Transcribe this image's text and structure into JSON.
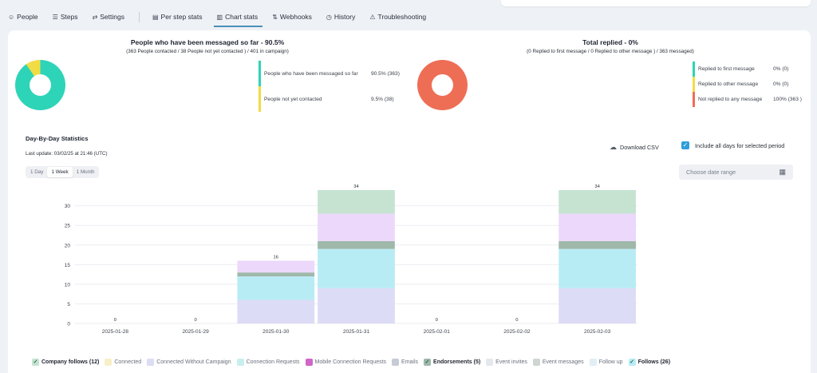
{
  "tabs": [
    {
      "icon": "users-icon",
      "glyph": "☺",
      "label": "People"
    },
    {
      "icon": "steps-icon",
      "glyph": "☰",
      "label": "Steps"
    },
    {
      "icon": "settings-icon",
      "glyph": "⇄",
      "label": "Settings"
    },
    {
      "icon": "per-step-stats-icon",
      "glyph": "▤",
      "label": "Per step stats"
    },
    {
      "icon": "chart-stats-icon",
      "glyph": "▥",
      "label": "Chart stats"
    },
    {
      "icon": "webhooks-icon",
      "glyph": "⇅",
      "label": "Webhooks"
    },
    {
      "icon": "history-icon",
      "glyph": "◷",
      "label": "History"
    },
    {
      "icon": "troubleshooting-icon",
      "glyph": "⚠",
      "label": "Troubleshooting"
    }
  ],
  "active_tab": "Chart stats",
  "messaged": {
    "title": "People who have been messaged so far - 90.5%",
    "subtitle": "(363 People contacted / 38 People not yet contacted ) / 401 in campaign)",
    "legend": [
      {
        "label": "People who have been messaged so far",
        "value": "90.5% (363)",
        "color": "#2dd4b8"
      },
      {
        "label": "People not yet contacted",
        "value": "9.5% (38)",
        "color": "#f1dc45"
      }
    ],
    "share": 0.905
  },
  "replied": {
    "title": "Total replied - 0%",
    "subtitle": "(0 Replied to first message / 0 Replied to other message ) / 363 messaged)",
    "legend": [
      {
        "label": "Replied to first message",
        "value": "0% (0)",
        "color": "#2dd4b8"
      },
      {
        "label": "Replied to other message",
        "value": "0% (0)",
        "color": "#f1dc45"
      },
      {
        "label": "Not replied to any message",
        "value": "100% (363 )",
        "color": "#ee6e55"
      }
    ],
    "color": "#ee6e55"
  },
  "daily": {
    "title": "Day-By-Day Statistics",
    "last_update": "Last update: 03/02/25 at 21:46 (UTC)",
    "download_label": "Download CSV",
    "include_label": "Include all days for selected period",
    "date_placeholder": "Choose date range",
    "ranges": [
      "1 Day",
      "1 Week",
      "1 Month"
    ],
    "active_range": "1 Week"
  },
  "chart_data": {
    "type": "bar",
    "stacked": true,
    "categories": [
      "2025-01-28",
      "2025-01-29",
      "2025-01-30",
      "2025-01-31",
      "2025-02-01",
      "2025-02-02",
      "2025-02-03"
    ],
    "totals": [
      "0",
      "0",
      "16",
      "34",
      "0",
      "0",
      "34"
    ],
    "ylim": [
      0,
      34
    ],
    "yticks": [
      0,
      5,
      10,
      15,
      20,
      25,
      30
    ],
    "grid": true,
    "series": [
      {
        "name": "Connected Without Campaign",
        "color": "#dcdcf6",
        "values": [
          0,
          0,
          6,
          9,
          0,
          0,
          9
        ]
      },
      {
        "name": "Connection Requests",
        "color": "#b8ecf5",
        "values": [
          0,
          0,
          6,
          10,
          0,
          0,
          10
        ]
      },
      {
        "name": "Emails",
        "color": "#9fb8aa",
        "values": [
          0,
          0,
          1,
          2,
          0,
          0,
          2
        ]
      },
      {
        "name": "Event invites",
        "color": "#ecd8fb",
        "values": [
          0,
          0,
          3,
          7,
          0,
          0,
          7
        ]
      },
      {
        "name": "Follow up",
        "color": "#c6e3d2",
        "values": [
          0,
          0,
          0,
          6,
          0,
          0,
          6
        ]
      }
    ]
  },
  "bottom_legend": [
    {
      "label": "Company follows",
      "count": "(12)",
      "on": true,
      "color": "#c6e3d2"
    },
    {
      "label": "Connected",
      "count": "",
      "on": false,
      "color": "#f7f0c6"
    },
    {
      "label": "Connected Without Campaign",
      "count": "",
      "on": false,
      "color": "#dcdcf6"
    },
    {
      "label": "Connection Requests",
      "count": "",
      "on": false,
      "color": "#c8efef"
    },
    {
      "label": "Mobile Connection Requests",
      "count": "",
      "on": false,
      "color": "#d066c8"
    },
    {
      "label": "Emails",
      "count": "",
      "on": false,
      "color": "#c6ccd4"
    },
    {
      "label": "Endorsements",
      "count": "(5)",
      "on": true,
      "color": "#9fb8aa"
    },
    {
      "label": "Event invites",
      "count": "",
      "on": false,
      "color": "#e4e8ec"
    },
    {
      "label": "Event messages",
      "count": "",
      "on": false,
      "color": "#cfd6d1"
    },
    {
      "label": "Follow up",
      "count": "",
      "on": false,
      "color": "#e2eef6"
    },
    {
      "label": "Follows",
      "count": "(26)",
      "on": true,
      "color": "#b8ecf5"
    }
  ]
}
